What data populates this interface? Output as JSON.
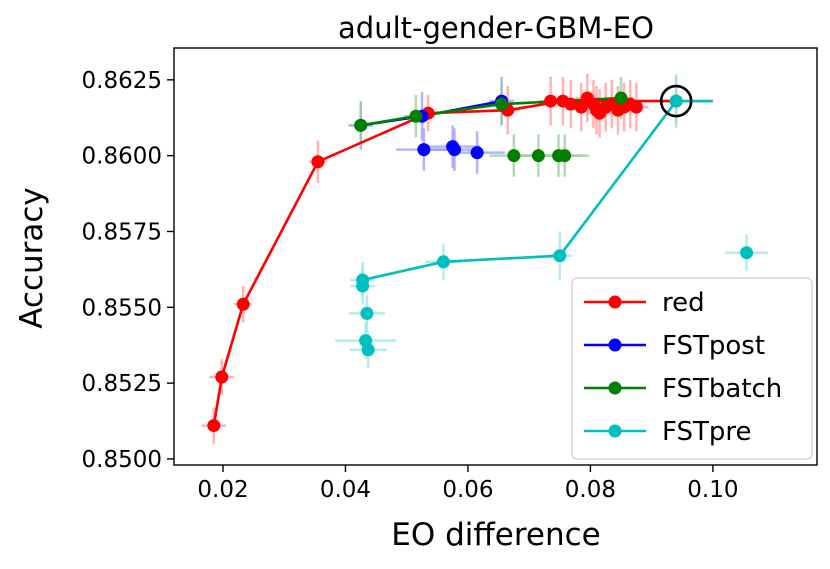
{
  "chart_data": {
    "type": "scatter",
    "title": "adult-gender-GBM-EO",
    "xlabel": "EO difference",
    "ylabel": "Accuracy",
    "xlim": [
      0.012,
      0.117
    ],
    "ylim": [
      0.8498,
      0.86355
    ],
    "xticks": [
      0.02,
      0.04,
      0.06,
      0.08,
      0.1
    ],
    "xtick_labels": [
      "0.02",
      "0.04",
      "0.06",
      "0.08",
      "0.10"
    ],
    "yticks": [
      0.85,
      0.8525,
      0.855,
      0.8575,
      0.86,
      0.8625
    ],
    "ytick_labels": [
      "0.8500",
      "0.8525",
      "0.8550",
      "0.8575",
      "0.8600",
      "0.8625"
    ],
    "grid": false,
    "legend_position": "lower-right",
    "highlight": {
      "x": 0.094,
      "y": 0.8618,
      "marker": "open-circle"
    },
    "series": [
      {
        "name": "red",
        "color": "#ff0000",
        "errcolor": "#ff9999",
        "line": [
          [
            0.0185,
            0.8511
          ],
          [
            0.0198,
            0.8527
          ],
          [
            0.0233,
            0.8551
          ],
          [
            0.0355,
            0.8598
          ],
          [
            0.0535,
            0.8614
          ],
          [
            0.0665,
            0.8615
          ],
          [
            0.0755,
            0.8618
          ],
          [
            0.094,
            0.8618
          ]
        ],
        "points": [
          {
            "x": 0.0185,
            "y": 0.8511,
            "xerr": 0.002,
            "yerr": 0.0006
          },
          {
            "x": 0.0198,
            "y": 0.8527,
            "xerr": 0.002,
            "yerr": 0.0006
          },
          {
            "x": 0.0233,
            "y": 0.8551,
            "xerr": 0.0015,
            "yerr": 0.0006
          },
          {
            "x": 0.0355,
            "y": 0.8598,
            "xerr": 0.0015,
            "yerr": 0.0007
          },
          {
            "x": 0.0535,
            "y": 0.8614,
            "xerr": 0.0015,
            "yerr": 0.0006
          },
          {
            "x": 0.0665,
            "y": 0.8615,
            "xerr": 0.002,
            "yerr": 0.0008
          },
          {
            "x": 0.0735,
            "y": 0.8618,
            "xerr": 0.002,
            "yerr": 0.0008
          },
          {
            "x": 0.0755,
            "y": 0.8618,
            "xerr": 0.002,
            "yerr": 0.0008
          },
          {
            "x": 0.0768,
            "y": 0.8617,
            "xerr": 0.002,
            "yerr": 0.0008
          },
          {
            "x": 0.0785,
            "y": 0.8616,
            "xerr": 0.002,
            "yerr": 0.0008
          },
          {
            "x": 0.0795,
            "y": 0.8619,
            "xerr": 0.002,
            "yerr": 0.0008
          },
          {
            "x": 0.0805,
            "y": 0.8617,
            "xerr": 0.002,
            "yerr": 0.0008
          },
          {
            "x": 0.081,
            "y": 0.8615,
            "xerr": 0.002,
            "yerr": 0.0008
          },
          {
            "x": 0.0815,
            "y": 0.8614,
            "xerr": 0.002,
            "yerr": 0.0008
          },
          {
            "x": 0.0825,
            "y": 0.8616,
            "xerr": 0.002,
            "yerr": 0.0008
          },
          {
            "x": 0.0835,
            "y": 0.8617,
            "xerr": 0.002,
            "yerr": 0.0008
          },
          {
            "x": 0.0845,
            "y": 0.8615,
            "xerr": 0.002,
            "yerr": 0.0008
          },
          {
            "x": 0.0855,
            "y": 0.8616,
            "xerr": 0.002,
            "yerr": 0.0008
          },
          {
            "x": 0.0865,
            "y": 0.8617,
            "xerr": 0.002,
            "yerr": 0.0008
          },
          {
            "x": 0.0875,
            "y": 0.8616,
            "xerr": 0.002,
            "yerr": 0.0008
          },
          {
            "x": 0.094,
            "y": 0.8618,
            "xerr": 0.002,
            "yerr": 0.0008
          }
        ]
      },
      {
        "name": "FSTpost",
        "color": "#0000ff",
        "errcolor": "#9999ff",
        "line": [
          [
            0.0425,
            0.861
          ],
          [
            0.0525,
            0.8613
          ],
          [
            0.0655,
            0.8618
          ]
        ],
        "points": [
          {
            "x": 0.0425,
            "y": 0.861,
            "xerr": 0.002,
            "yerr": 0.0008
          },
          {
            "x": 0.0525,
            "y": 0.8613,
            "xerr": 0.002,
            "yerr": 0.0008
          },
          {
            "x": 0.0655,
            "y": 0.8618,
            "xerr": 0.002,
            "yerr": 0.0008
          },
          {
            "x": 0.0528,
            "y": 0.8602,
            "xerr": 0.0045,
            "yerr": 0.0007
          },
          {
            "x": 0.0575,
            "y": 0.8603,
            "xerr": 0.0045,
            "yerr": 0.0007
          },
          {
            "x": 0.0578,
            "y": 0.8602,
            "xerr": 0.0045,
            "yerr": 0.0007
          },
          {
            "x": 0.0615,
            "y": 0.8601,
            "xerr": 0.0045,
            "yerr": 0.0007
          }
        ]
      },
      {
        "name": "FSTbatch",
        "color": "#008000",
        "errcolor": "#99cc99",
        "line": [
          [
            0.0425,
            0.861
          ],
          [
            0.0515,
            0.8613
          ],
          [
            0.0655,
            0.8617
          ],
          [
            0.085,
            0.8619
          ]
        ],
        "points": [
          {
            "x": 0.0425,
            "y": 0.861,
            "xerr": 0.002,
            "yerr": 0.0007
          },
          {
            "x": 0.0515,
            "y": 0.8613,
            "xerr": 0.002,
            "yerr": 0.0007
          },
          {
            "x": 0.0655,
            "y": 0.8617,
            "xerr": 0.002,
            "yerr": 0.0007
          },
          {
            "x": 0.085,
            "y": 0.8619,
            "xerr": 0.002,
            "yerr": 0.0007
          },
          {
            "x": 0.0675,
            "y": 0.86,
            "xerr": 0.004,
            "yerr": 0.0007
          },
          {
            "x": 0.0715,
            "y": 0.86,
            "xerr": 0.004,
            "yerr": 0.0007
          },
          {
            "x": 0.0748,
            "y": 0.86,
            "xerr": 0.004,
            "yerr": 0.0007
          },
          {
            "x": 0.0758,
            "y": 0.86,
            "xerr": 0.004,
            "yerr": 0.0007
          }
        ]
      },
      {
        "name": "FSTpre",
        "color": "#00bfbf",
        "errcolor": "#99e5e5",
        "line": [
          [
            0.0428,
            0.8559
          ],
          [
            0.056,
            0.8565
          ],
          [
            0.075,
            0.8567
          ],
          [
            0.094,
            0.8618
          ],
          [
            0.1,
            0.8618
          ]
        ],
        "points": [
          {
            "x": 0.0428,
            "y": 0.8559,
            "xerr": 0.002,
            "yerr": 0.0006
          },
          {
            "x": 0.0428,
            "y": 0.8557,
            "xerr": 0.002,
            "yerr": 0.0006
          },
          {
            "x": 0.0435,
            "y": 0.8548,
            "xerr": 0.003,
            "yerr": 0.0006
          },
          {
            "x": 0.0433,
            "y": 0.8539,
            "xerr": 0.005,
            "yerr": 0.0006
          },
          {
            "x": 0.0437,
            "y": 0.8536,
            "xerr": 0.003,
            "yerr": 0.0006
          },
          {
            "x": 0.056,
            "y": 0.8565,
            "xerr": 0.003,
            "yerr": 0.0006
          },
          {
            "x": 0.075,
            "y": 0.8567,
            "xerr": 0.002,
            "yerr": 0.0008
          },
          {
            "x": 0.094,
            "y": 0.8618,
            "xerr": 0.006,
            "yerr": 0.0009
          },
          {
            "x": 0.1055,
            "y": 0.8568,
            "xerr": 0.0035,
            "yerr": 0.0006
          }
        ]
      }
    ]
  }
}
